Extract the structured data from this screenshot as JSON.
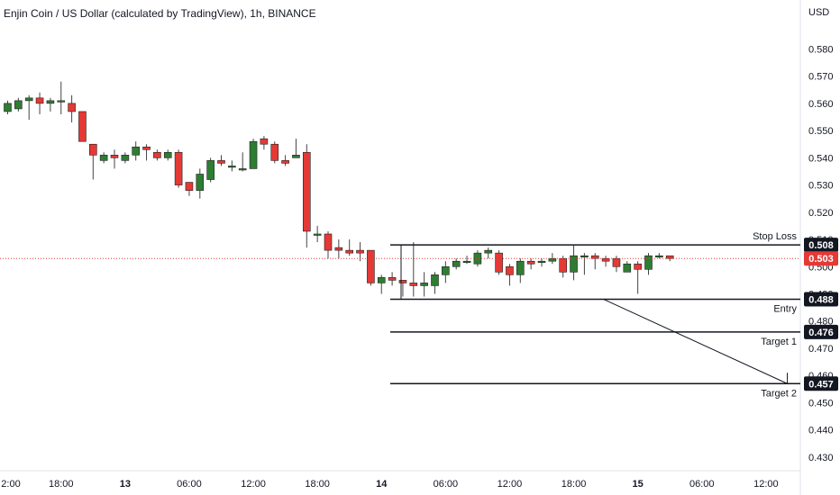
{
  "chart_data": {
    "type": "candlestick",
    "title": "Enjin Coin / US Dollar (calculated by TradingView), 1h, BINANCE",
    "currency": "USD",
    "ylim": [
      0.425,
      0.598
    ],
    "y_ticks": [
      "0.580",
      "0.570",
      "0.560",
      "0.550",
      "0.540",
      "0.530",
      "0.520",
      "0.510",
      "0.500",
      "0.490",
      "0.480",
      "0.470",
      "0.460",
      "0.450",
      "0.440",
      "0.430"
    ],
    "x_ticks": [
      {
        "label": "2:00",
        "bold": false,
        "x": -1
      },
      {
        "label": "18:00",
        "bold": false,
        "x": 5
      },
      {
        "label": "13",
        "bold": true,
        "x": 11
      },
      {
        "label": "06:00",
        "bold": false,
        "x": 17
      },
      {
        "label": "12:00",
        "bold": false,
        "x": 23
      },
      {
        "label": "18:00",
        "bold": false,
        "x": 29
      },
      {
        "label": "14",
        "bold": true,
        "x": 35
      },
      {
        "label": "06:00",
        "bold": false,
        "x": 41
      },
      {
        "label": "12:00",
        "bold": false,
        "x": 47
      },
      {
        "label": "18:00",
        "bold": false,
        "x": 53
      },
      {
        "label": "15",
        "bold": true,
        "x": 59
      },
      {
        "label": "06:00",
        "bold": false,
        "x": 65
      },
      {
        "label": "12:00",
        "bold": false,
        "x": 71
      }
    ],
    "candles": [
      [
        0.557,
        0.56,
        0.561,
        0.556
      ],
      [
        0.558,
        0.561,
        0.562,
        0.557
      ],
      [
        0.561,
        0.562,
        0.563,
        0.554
      ],
      [
        0.562,
        0.56,
        0.564,
        0.556
      ],
      [
        0.56,
        0.561,
        0.562,
        0.557
      ],
      [
        0.561,
        0.561,
        0.568,
        0.556
      ],
      [
        0.56,
        0.557,
        0.563,
        0.553
      ],
      [
        0.557,
        0.546,
        0.557,
        0.546
      ],
      [
        0.545,
        0.541,
        0.545,
        0.532
      ],
      [
        0.539,
        0.541,
        0.542,
        0.538
      ],
      [
        0.541,
        0.54,
        0.543,
        0.536
      ],
      [
        0.539,
        0.541,
        0.542,
        0.538
      ],
      [
        0.541,
        0.544,
        0.546,
        0.539
      ],
      [
        0.544,
        0.543,
        0.545,
        0.539
      ],
      [
        0.542,
        0.54,
        0.543,
        0.539
      ],
      [
        0.54,
        0.542,
        0.543,
        0.539
      ],
      [
        0.542,
        0.53,
        0.543,
        0.529
      ],
      [
        0.531,
        0.528,
        0.531,
        0.526
      ],
      [
        0.528,
        0.534,
        0.536,
        0.525
      ],
      [
        0.532,
        0.539,
        0.54,
        0.531
      ],
      [
        0.539,
        0.538,
        0.541,
        0.537
      ],
      [
        0.537,
        0.537,
        0.539,
        0.535
      ],
      [
        0.536,
        0.536,
        0.542,
        0.535
      ],
      [
        0.536,
        0.546,
        0.547,
        0.536
      ],
      [
        0.547,
        0.545,
        0.548,
        0.543
      ],
      [
        0.545,
        0.539,
        0.546,
        0.538
      ],
      [
        0.539,
        0.538,
        0.541,
        0.537
      ],
      [
        0.54,
        0.541,
        0.547,
        0.54
      ],
      [
        0.542,
        0.513,
        0.545,
        0.507
      ],
      [
        0.512,
        0.512,
        0.515,
        0.509
      ],
      [
        0.512,
        0.506,
        0.513,
        0.503
      ],
      [
        0.507,
        0.506,
        0.51,
        0.503
      ],
      [
        0.506,
        0.505,
        0.51,
        0.504
      ],
      [
        0.506,
        0.505,
        0.509,
        0.502
      ],
      [
        0.506,
        0.494,
        0.506,
        0.493
      ],
      [
        0.494,
        0.496,
        0.497,
        0.49
      ],
      [
        0.496,
        0.495,
        0.498,
        0.493
      ],
      [
        0.495,
        0.494,
        0.495,
        0.489
      ],
      [
        0.494,
        0.493,
        0.509,
        0.489
      ],
      [
        0.493,
        0.494,
        0.498,
        0.489
      ],
      [
        0.493,
        0.497,
        0.498,
        0.49
      ],
      [
        0.497,
        0.5,
        0.502,
        0.494
      ],
      [
        0.5,
        0.502,
        0.503,
        0.499
      ],
      [
        0.502,
        0.502,
        0.504,
        0.501
      ],
      [
        0.501,
        0.505,
        0.506,
        0.5
      ],
      [
        0.505,
        0.506,
        0.507,
        0.503
      ],
      [
        0.505,
        0.498,
        0.506,
        0.497
      ],
      [
        0.5,
        0.497,
        0.501,
        0.493
      ],
      [
        0.497,
        0.502,
        0.503,
        0.494
      ],
      [
        0.502,
        0.501,
        0.503,
        0.499
      ],
      [
        0.502,
        0.502,
        0.503,
        0.5
      ],
      [
        0.502,
        0.503,
        0.505,
        0.501
      ],
      [
        0.503,
        0.498,
        0.504,
        0.496
      ],
      [
        0.498,
        0.504,
        0.508,
        0.495
      ],
      [
        0.504,
        0.504,
        0.505,
        0.497
      ],
      [
        0.504,
        0.503,
        0.505,
        0.499
      ],
      [
        0.503,
        0.502,
        0.504,
        0.5
      ],
      [
        0.503,
        0.5,
        0.504,
        0.498
      ],
      [
        0.498,
        0.501,
        0.502,
        0.499
      ],
      [
        0.501,
        0.499,
        0.502,
        0.49
      ],
      [
        0.499,
        0.504,
        0.505,
        0.497
      ],
      [
        0.504,
        0.504,
        0.505,
        0.503
      ],
      [
        0.504,
        0.503,
        0.504,
        0.502
      ]
    ],
    "current_price": "0.503",
    "levels": [
      {
        "name": "Stop Loss",
        "value": 0.508,
        "label": "0.508"
      },
      {
        "name": "Entry",
        "value": 0.488,
        "label": "0.488"
      },
      {
        "name": "Target 1",
        "value": 0.476,
        "label": "0.476"
      },
      {
        "name": "Target 2",
        "value": 0.457,
        "label": "0.457"
      }
    ],
    "arrow": {
      "from": {
        "x": 55.8,
        "value": 0.488
      },
      "to": {
        "x": 73,
        "value": 0.457
      }
    },
    "colors": {
      "up": "#2e7d32",
      "down": "#e53935",
      "wick": "#444444",
      "level": "#131722",
      "current": "#e53935",
      "badge": "#131722"
    }
  }
}
